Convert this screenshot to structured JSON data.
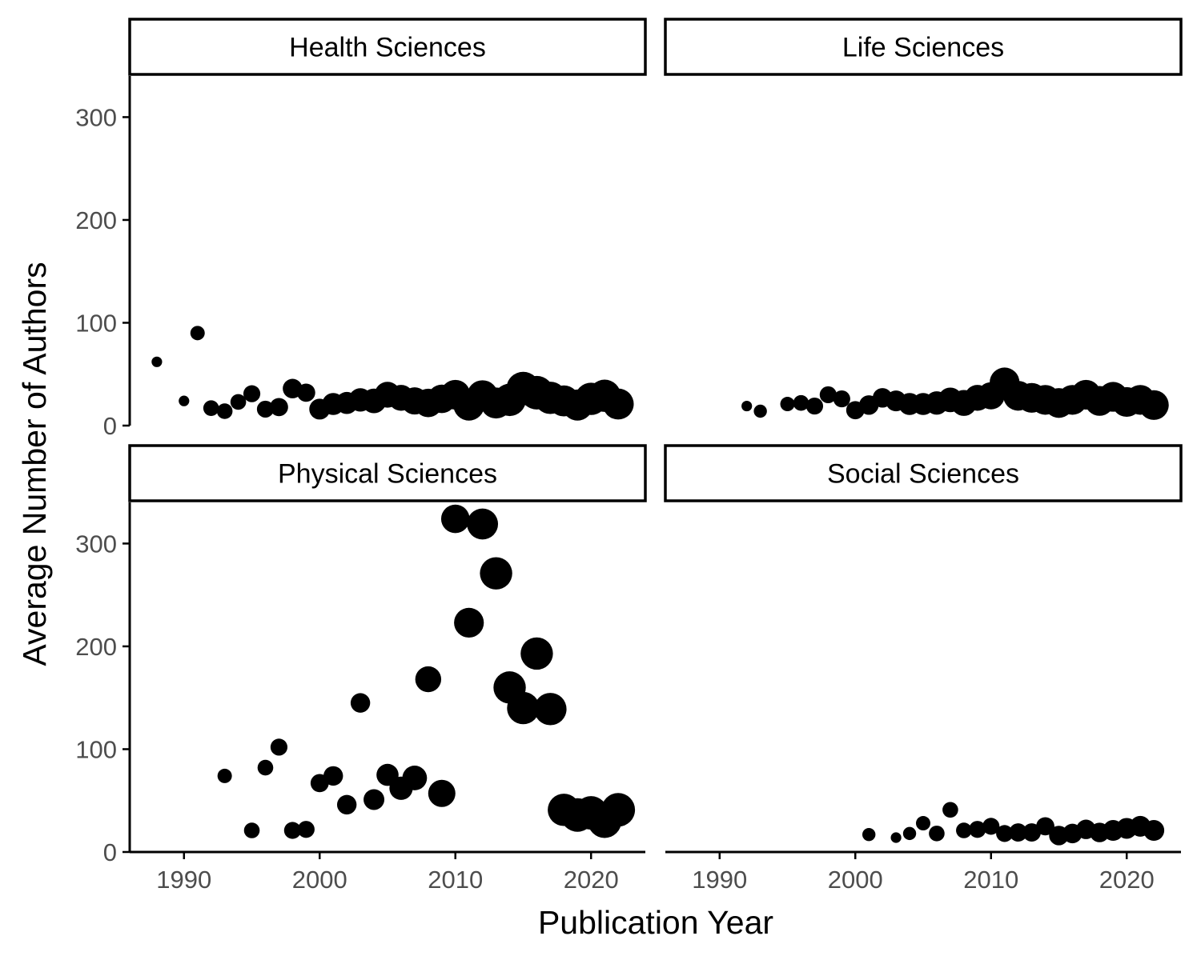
{
  "chart_data": {
    "type": "scatter",
    "xlabel": "Publication Year",
    "ylabel": "Average Number of Authors",
    "xlim": [
      1986,
      2024
    ],
    "ylim": [
      0,
      340
    ],
    "x_ticks": [
      "1990",
      "2000",
      "2010",
      "2020"
    ],
    "y_ticks": [
      "0",
      "100",
      "200",
      "300"
    ],
    "grid": false,
    "legend": "none",
    "point_color": "#000000",
    "size_note_hidden": true,
    "facets": [
      {
        "name": "Health Sciences",
        "points": [
          {
            "x": 1988,
            "y": 62,
            "s": 0.1
          },
          {
            "x": 1990,
            "y": 24,
            "s": 0.1
          },
          {
            "x": 1991,
            "y": 90,
            "s": 0.25
          },
          {
            "x": 1992,
            "y": 17,
            "s": 0.3
          },
          {
            "x": 1993,
            "y": 14,
            "s": 0.3
          },
          {
            "x": 1994,
            "y": 23,
            "s": 0.3
          },
          {
            "x": 1995,
            "y": 31,
            "s": 0.35
          },
          {
            "x": 1996,
            "y": 16,
            "s": 0.35
          },
          {
            "x": 1997,
            "y": 18,
            "s": 0.4
          },
          {
            "x": 1998,
            "y": 36,
            "s": 0.45
          },
          {
            "x": 1999,
            "y": 32,
            "s": 0.4
          },
          {
            "x": 2000,
            "y": 16,
            "s": 0.5
          },
          {
            "x": 2001,
            "y": 21,
            "s": 0.55
          },
          {
            "x": 2002,
            "y": 22,
            "s": 0.55
          },
          {
            "x": 2003,
            "y": 25,
            "s": 0.6
          },
          {
            "x": 2004,
            "y": 24,
            "s": 0.65
          },
          {
            "x": 2005,
            "y": 30,
            "s": 0.7
          },
          {
            "x": 2006,
            "y": 27,
            "s": 0.7
          },
          {
            "x": 2007,
            "y": 24,
            "s": 0.75
          },
          {
            "x": 2008,
            "y": 22,
            "s": 0.8
          },
          {
            "x": 2009,
            "y": 26,
            "s": 0.8
          },
          {
            "x": 2010,
            "y": 30,
            "s": 0.85
          },
          {
            "x": 2011,
            "y": 20,
            "s": 0.9
          },
          {
            "x": 2012,
            "y": 29,
            "s": 0.9
          },
          {
            "x": 2013,
            "y": 22,
            "s": 0.9
          },
          {
            "x": 2014,
            "y": 25,
            "s": 0.95
          },
          {
            "x": 2015,
            "y": 36,
            "s": 1.0
          },
          {
            "x": 2016,
            "y": 32,
            "s": 1.0
          },
          {
            "x": 2017,
            "y": 27,
            "s": 0.95
          },
          {
            "x": 2018,
            "y": 24,
            "s": 0.9
          },
          {
            "x": 2019,
            "y": 20,
            "s": 0.9
          },
          {
            "x": 2020,
            "y": 26,
            "s": 0.95
          },
          {
            "x": 2021,
            "y": 29,
            "s": 0.95
          },
          {
            "x": 2022,
            "y": 21,
            "s": 0.9
          }
        ]
      },
      {
        "name": "Life Sciences",
        "points": [
          {
            "x": 1992,
            "y": 19,
            "s": 0.1
          },
          {
            "x": 1993,
            "y": 14,
            "s": 0.2
          },
          {
            "x": 1995,
            "y": 21,
            "s": 0.25
          },
          {
            "x": 1996,
            "y": 22,
            "s": 0.3
          },
          {
            "x": 1997,
            "y": 19,
            "s": 0.35
          },
          {
            "x": 1998,
            "y": 30,
            "s": 0.35
          },
          {
            "x": 1999,
            "y": 26,
            "s": 0.35
          },
          {
            "x": 2000,
            "y": 15,
            "s": 0.4
          },
          {
            "x": 2001,
            "y": 20,
            "s": 0.45
          },
          {
            "x": 2002,
            "y": 27,
            "s": 0.45
          },
          {
            "x": 2003,
            "y": 24,
            "s": 0.5
          },
          {
            "x": 2004,
            "y": 21,
            "s": 0.55
          },
          {
            "x": 2005,
            "y": 21,
            "s": 0.55
          },
          {
            "x": 2006,
            "y": 22,
            "s": 0.6
          },
          {
            "x": 2007,
            "y": 25,
            "s": 0.65
          },
          {
            "x": 2008,
            "y": 22,
            "s": 0.7
          },
          {
            "x": 2009,
            "y": 27,
            "s": 0.7
          },
          {
            "x": 2010,
            "y": 29,
            "s": 0.75
          },
          {
            "x": 2011,
            "y": 42,
            "s": 0.85
          },
          {
            "x": 2012,
            "y": 29,
            "s": 0.85
          },
          {
            "x": 2013,
            "y": 27,
            "s": 0.85
          },
          {
            "x": 2014,
            "y": 25,
            "s": 0.85
          },
          {
            "x": 2015,
            "y": 22,
            "s": 0.85
          },
          {
            "x": 2016,
            "y": 25,
            "s": 0.85
          },
          {
            "x": 2017,
            "y": 30,
            "s": 0.85
          },
          {
            "x": 2018,
            "y": 24,
            "s": 0.85
          },
          {
            "x": 2019,
            "y": 28,
            "s": 0.85
          },
          {
            "x": 2020,
            "y": 23,
            "s": 0.85
          },
          {
            "x": 2021,
            "y": 25,
            "s": 0.85
          },
          {
            "x": 2022,
            "y": 20,
            "s": 0.85
          }
        ]
      },
      {
        "name": "Physical Sciences",
        "points": [
          {
            "x": 1993,
            "y": 74,
            "s": 0.25
          },
          {
            "x": 1995,
            "y": 21,
            "s": 0.3
          },
          {
            "x": 1996,
            "y": 82,
            "s": 0.3
          },
          {
            "x": 1997,
            "y": 102,
            "s": 0.35
          },
          {
            "x": 1998,
            "y": 21,
            "s": 0.35
          },
          {
            "x": 1999,
            "y": 22,
            "s": 0.35
          },
          {
            "x": 2000,
            "y": 67,
            "s": 0.4
          },
          {
            "x": 2001,
            "y": 74,
            "s": 0.45
          },
          {
            "x": 2002,
            "y": 46,
            "s": 0.45
          },
          {
            "x": 2003,
            "y": 145,
            "s": 0.45
          },
          {
            "x": 2004,
            "y": 51,
            "s": 0.5
          },
          {
            "x": 2005,
            "y": 75,
            "s": 0.55
          },
          {
            "x": 2006,
            "y": 62,
            "s": 0.6
          },
          {
            "x": 2007,
            "y": 72,
            "s": 0.65
          },
          {
            "x": 2008,
            "y": 168,
            "s": 0.7
          },
          {
            "x": 2009,
            "y": 57,
            "s": 0.75
          },
          {
            "x": 2010,
            "y": 324,
            "s": 0.8
          },
          {
            "x": 2011,
            "y": 223,
            "s": 0.85
          },
          {
            "x": 2012,
            "y": 319,
            "s": 0.9
          },
          {
            "x": 2013,
            "y": 271,
            "s": 0.95
          },
          {
            "x": 2014,
            "y": 160,
            "s": 0.95
          },
          {
            "x": 2015,
            "y": 140,
            "s": 0.95
          },
          {
            "x": 2016,
            "y": 193,
            "s": 0.95
          },
          {
            "x": 2017,
            "y": 139,
            "s": 0.95
          },
          {
            "x": 2018,
            "y": 41,
            "s": 0.95
          },
          {
            "x": 2019,
            "y": 36,
            "s": 1.0
          },
          {
            "x": 2020,
            "y": 38,
            "s": 1.0
          },
          {
            "x": 2021,
            "y": 30,
            "s": 1.0
          },
          {
            "x": 2022,
            "y": 41,
            "s": 1.0
          }
        ]
      },
      {
        "name": "Social Sciences",
        "points": [
          {
            "x": 2001,
            "y": 17,
            "s": 0.2
          },
          {
            "x": 2003,
            "y": 14,
            "s": 0.1
          },
          {
            "x": 2004,
            "y": 18,
            "s": 0.2
          },
          {
            "x": 2005,
            "y": 28,
            "s": 0.25
          },
          {
            "x": 2006,
            "y": 18,
            "s": 0.3
          },
          {
            "x": 2007,
            "y": 41,
            "s": 0.3
          },
          {
            "x": 2008,
            "y": 21,
            "s": 0.3
          },
          {
            "x": 2009,
            "y": 22,
            "s": 0.35
          },
          {
            "x": 2010,
            "y": 25,
            "s": 0.35
          },
          {
            "x": 2011,
            "y": 18,
            "s": 0.35
          },
          {
            "x": 2012,
            "y": 19,
            "s": 0.4
          },
          {
            "x": 2013,
            "y": 19,
            "s": 0.4
          },
          {
            "x": 2014,
            "y": 25,
            "s": 0.4
          },
          {
            "x": 2015,
            "y": 16,
            "s": 0.45
          },
          {
            "x": 2016,
            "y": 18,
            "s": 0.45
          },
          {
            "x": 2017,
            "y": 22,
            "s": 0.45
          },
          {
            "x": 2018,
            "y": 19,
            "s": 0.45
          },
          {
            "x": 2019,
            "y": 21,
            "s": 0.5
          },
          {
            "x": 2020,
            "y": 23,
            "s": 0.5
          },
          {
            "x": 2021,
            "y": 25,
            "s": 0.5
          },
          {
            "x": 2022,
            "y": 21,
            "s": 0.5
          }
        ]
      }
    ]
  }
}
